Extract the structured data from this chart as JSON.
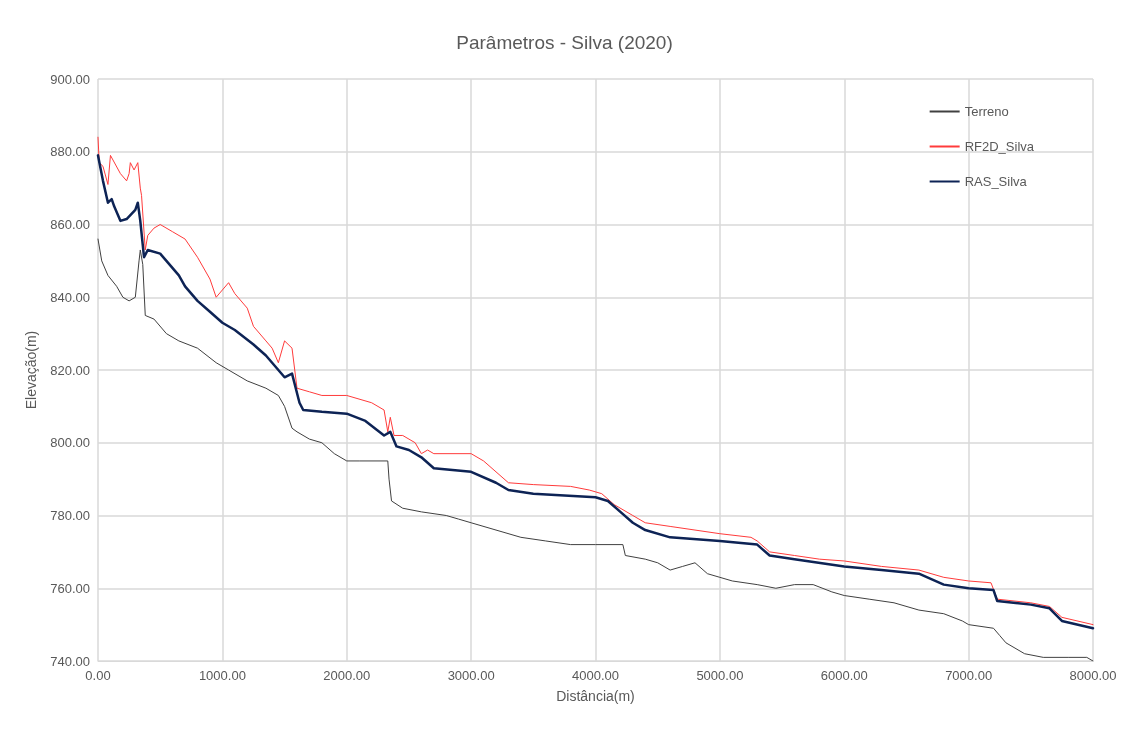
{
  "chart_data": {
    "type": "line",
    "title": "Parâmetros - Silva (2020)",
    "xlabel": "Distância(m)",
    "ylabel": "Elevação(m)",
    "xlim": [
      0,
      8000
    ],
    "ylim": [
      740,
      900
    ],
    "xticks": [
      {
        "value": 0,
        "label": "0.00"
      },
      {
        "value": 1000,
        "label": "1000.00"
      },
      {
        "value": 2000,
        "label": "2000.00"
      },
      {
        "value": 3000,
        "label": "3000.00"
      },
      {
        "value": 4000,
        "label": "4000.00"
      },
      {
        "value": 5000,
        "label": "5000.00"
      },
      {
        "value": 6000,
        "label": "6000.00"
      },
      {
        "value": 7000,
        "label": "7000.00"
      },
      {
        "value": 8000,
        "label": "8000.00"
      }
    ],
    "yticks": [
      {
        "value": 740,
        "label": "740.00"
      },
      {
        "value": 760,
        "label": "760.00"
      },
      {
        "value": 780,
        "label": "780.00"
      },
      {
        "value": 800,
        "label": "800.00"
      },
      {
        "value": 820,
        "label": "820.00"
      },
      {
        "value": 840,
        "label": "840.00"
      },
      {
        "value": 860,
        "label": "860.00"
      },
      {
        "value": 880,
        "label": "880.00"
      },
      {
        "value": 900,
        "label": "900.00"
      }
    ],
    "grid": true,
    "legend": "top right",
    "marker": "none",
    "line_style": "solid",
    "series": [
      {
        "name": "Terreno",
        "color": "#404040",
        "x": [
          0,
          30,
          80,
          150,
          200,
          250,
          300,
          330,
          340,
          360,
          380,
          450,
          550,
          650,
          800,
          950,
          1050,
          1200,
          1350,
          1450,
          1500,
          1560,
          1600,
          1700,
          1800,
          1900,
          2000,
          2100,
          2330,
          2340,
          2360,
          2450,
          2600,
          2800,
          2900,
          3000,
          3200,
          3400,
          3600,
          3800,
          4000,
          4220,
          4240,
          4400,
          4500,
          4600,
          4700,
          4800,
          4900,
          5000,
          5100,
          5300,
          5450,
          5600,
          5750,
          5900,
          6000,
          6200,
          6400,
          6600,
          6800,
          6950,
          7000,
          7200,
          7250,
          7300,
          7450,
          7600,
          7800,
          7950,
          8000
        ],
        "values": [
          856,
          850,
          846,
          843,
          840,
          839,
          840,
          850,
          853,
          849,
          835,
          834,
          830,
          828,
          826,
          822,
          820,
          817,
          815,
          813,
          810,
          804,
          803,
          801,
          800,
          797,
          795,
          795,
          795,
          790,
          784,
          782,
          781,
          780,
          779,
          778,
          776,
          774,
          773,
          772,
          772,
          772,
          769,
          768,
          767,
          765,
          766,
          767,
          764,
          763,
          762,
          761,
          760,
          761,
          761,
          759,
          758,
          757,
          756,
          754,
          753,
          751,
          750,
          749,
          747,
          745,
          742,
          741,
          741,
          741,
          740
        ]
      },
      {
        "name": "RF2D_Silva",
        "color": "#ff3b3b",
        "x": [
          0,
          10,
          40,
          80,
          100,
          180,
          230,
          250,
          260,
          290,
          320,
          340,
          350,
          380,
          400,
          450,
          500,
          600,
          700,
          800,
          900,
          950,
          1000,
          1050,
          1100,
          1200,
          1250,
          1350,
          1400,
          1450,
          1500,
          1560,
          1600,
          1700,
          1800,
          2000,
          2200,
          2300,
          2330,
          2350,
          2380,
          2450,
          2550,
          2600,
          2650,
          2700,
          3000,
          3100,
          3200,
          3300,
          3500,
          3800,
          3950,
          4050,
          4150,
          4300,
          4400,
          4600,
          4800,
          5000,
          5250,
          5300,
          5400,
          5600,
          5800,
          6000,
          6300,
          6600,
          6800,
          7000,
          7180,
          7230,
          7500,
          7650,
          7750,
          8000
        ],
        "values": [
          884,
          877,
          876,
          871,
          879,
          874,
          872,
          874,
          877,
          875,
          877,
          870,
          868,
          853,
          857,
          859,
          860,
          858,
          856,
          851,
          845,
          840,
          842,
          844,
          841,
          837,
          832,
          828,
          826,
          822,
          828,
          826,
          815,
          814,
          813,
          813,
          811,
          809,
          803,
          807,
          802,
          802,
          800,
          797,
          798,
          797,
          797,
          795,
          792,
          789,
          788.5,
          788,
          787,
          786,
          783,
          780,
          778,
          777,
          776,
          775,
          774,
          773,
          770,
          769,
          768,
          767.5,
          766,
          765,
          763,
          762,
          761.5,
          757,
          756,
          755,
          752,
          750
        ]
      },
      {
        "name": "RAS_Silva",
        "color": "#0d2355",
        "x": [
          0,
          40,
          80,
          110,
          130,
          180,
          230,
          300,
          320,
          340,
          370,
          400,
          500,
          550,
          650,
          700,
          800,
          900,
          1000,
          1100,
          1250,
          1350,
          1450,
          1500,
          1560,
          1620,
          1650,
          1800,
          2000,
          2150,
          2300,
          2350,
          2400,
          2500,
          2600,
          2700,
          2850,
          3000,
          3200,
          3300,
          3500,
          4000,
          4100,
          4200,
          4300,
          4400,
          4600,
          5000,
          5300,
          5400,
          5600,
          6000,
          6300,
          6600,
          6800,
          7000,
          7200,
          7230,
          7500,
          7650,
          7750,
          8000
        ],
        "values": [
          879,
          872,
          866,
          867,
          865,
          861,
          861.5,
          864,
          866,
          861,
          851,
          853,
          852,
          850,
          846,
          843,
          839,
          836,
          833,
          831,
          827,
          824,
          820,
          818,
          819,
          811,
          809,
          808.5,
          808,
          806,
          802,
          803,
          799,
          798,
          796,
          793,
          792.5,
          792,
          789,
          787,
          786,
          785,
          784,
          781,
          778,
          776,
          774,
          773,
          772,
          769,
          768,
          766,
          765,
          764,
          761,
          760,
          759.5,
          756.5,
          755.5,
          754.5,
          751,
          749
        ]
      }
    ]
  }
}
